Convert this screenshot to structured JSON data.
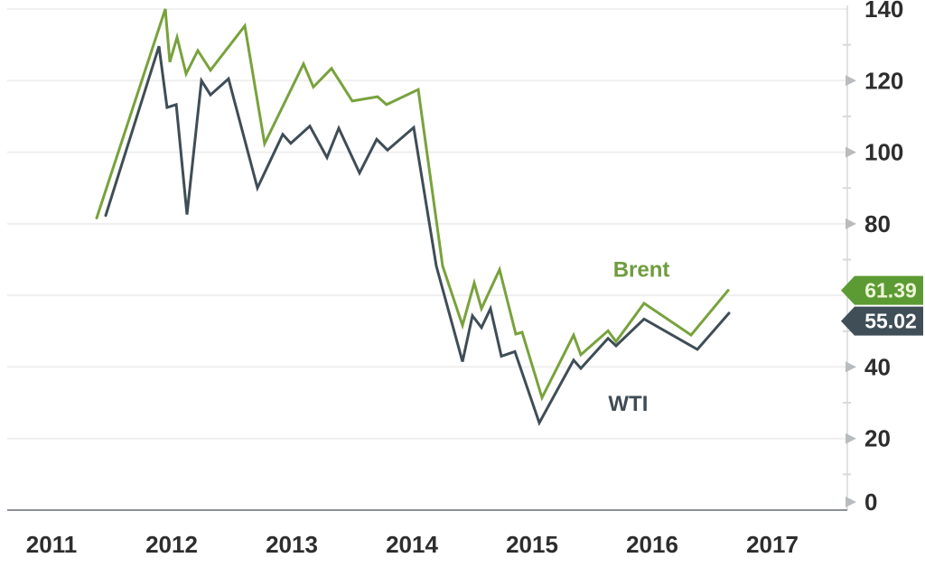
{
  "chart_data": {
    "type": "line",
    "title": "",
    "subtitle": "",
    "x_axis": {
      "ticks": [
        2011,
        2012,
        2013,
        2014,
        2015,
        2016,
        2017
      ],
      "labels": [
        "2011",
        "2012",
        "2013",
        "2014",
        "2015",
        "2016",
        "2017"
      ]
    },
    "y_axis": {
      "min": 0,
      "max": 140,
      "position": "right",
      "major_ticks": [
        0,
        20,
        40,
        60,
        80,
        100,
        120,
        140
      ],
      "minor_ticks": [
        10,
        30,
        50,
        70,
        90,
        110,
        130
      ],
      "labels_hidden_behind_badges": [
        60
      ],
      "ticks_without_arrow": [
        60,
        140
      ]
    },
    "grid": "horizontal",
    "legend_position": "inline-annotations",
    "series": [
      {
        "name": "Brent",
        "color": "#78a23c",
        "end_value": 61.39,
        "badge": {
          "text": "61.39",
          "bg": "#5c9b33",
          "text_color": "#edf5d8"
        },
        "points": [
          [
            2011.376,
            81.6
          ],
          [
            2011.947,
            140.0
          ],
          [
            2011.985,
            125.2
          ],
          [
            2012.045,
            132.1
          ],
          [
            2012.12,
            121.9
          ],
          [
            2012.218,
            128.4
          ],
          [
            2012.323,
            122.9
          ],
          [
            2012.609,
            135.3
          ],
          [
            2012.774,
            102.4
          ],
          [
            2013.098,
            124.7
          ],
          [
            2013.18,
            118.2
          ],
          [
            2013.331,
            123.4
          ],
          [
            2013.504,
            114.3
          ],
          [
            2013.714,
            115.5
          ],
          [
            2013.789,
            113.3
          ],
          [
            2014.053,
            117.5
          ],
          [
            2014.256,
            68.2
          ],
          [
            2014.421,
            51.6
          ],
          [
            2014.519,
            63.5
          ],
          [
            2014.579,
            56.3
          ],
          [
            2014.729,
            67.2
          ],
          [
            2014.865,
            49.2
          ],
          [
            2014.917,
            49.7
          ],
          [
            2015.083,
            31.4
          ],
          [
            2015.346,
            48.9
          ],
          [
            2015.406,
            43.4
          ],
          [
            2015.632,
            50.1
          ],
          [
            2015.699,
            47.1
          ],
          [
            2015.932,
            57.8
          ],
          [
            2016.323,
            48.9
          ],
          [
            2016.632,
            61.39
          ]
        ]
      },
      {
        "name": "WTI",
        "color": "#3f4d56",
        "end_value": 55.02,
        "badge": {
          "text": "55.02",
          "bg": "#3f4e57",
          "text_color": "#fdfdfd"
        },
        "points": [
          [
            2011.451,
            82.3
          ],
          [
            2011.895,
            129.6
          ],
          [
            2011.962,
            112.5
          ],
          [
            2012.038,
            113.3
          ],
          [
            2012.128,
            82.6
          ],
          [
            2012.248,
            120.0
          ],
          [
            2012.323,
            116.0
          ],
          [
            2012.474,
            120.5
          ],
          [
            2012.714,
            90.0
          ],
          [
            2012.925,
            105.0
          ],
          [
            2012.992,
            102.5
          ],
          [
            2013.15,
            107.3
          ],
          [
            2013.293,
            98.5
          ],
          [
            2013.391,
            106.7
          ],
          [
            2013.564,
            94.2
          ],
          [
            2013.707,
            103.6
          ],
          [
            2013.797,
            100.6
          ],
          [
            2014.015,
            106.9
          ],
          [
            2014.203,
            68.2
          ],
          [
            2014.421,
            41.5
          ],
          [
            2014.504,
            54.3
          ],
          [
            2014.579,
            51.0
          ],
          [
            2014.654,
            56.3
          ],
          [
            2014.744,
            43.0
          ],
          [
            2014.857,
            44.3
          ],
          [
            2015.06,
            24.4
          ],
          [
            2015.346,
            41.9
          ],
          [
            2015.406,
            39.6
          ],
          [
            2015.632,
            48.0
          ],
          [
            2015.699,
            45.9
          ],
          [
            2015.932,
            53.4
          ],
          [
            2016.376,
            44.9
          ],
          [
            2016.639,
            55.02
          ]
        ]
      }
    ],
    "annotations": [
      {
        "text": "Brent",
        "x": 2015.91,
        "y": 67.5,
        "color": "#6f9c3d"
      },
      {
        "text": "WTI",
        "x": 2015.8,
        "y": 30.0,
        "color": "#3f4c55"
      }
    ],
    "colors": {
      "grid": "#efefef",
      "axis_vertical_line": "#d9d9d9",
      "axis_bottom_line": "#8c9196",
      "tick_arrow": "#b9bcbf",
      "minor_tick": "#d9d9d9",
      "tick_text": "#2d2d2d"
    }
  }
}
